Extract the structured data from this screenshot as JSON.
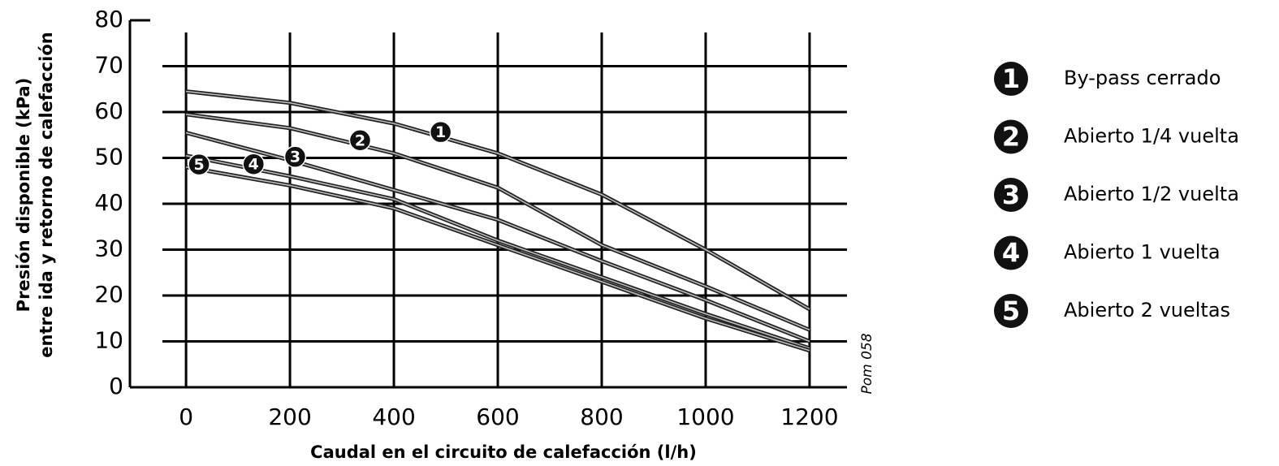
{
  "chart_data": {
    "type": "line",
    "x_label": "Caudal en el circuito de calefacción (l/h)",
    "y_label": [
      "Presión disponible (kPa)",
      "entre ida y retorno de calefacción"
    ],
    "annotation": "Pom 058",
    "x": [
      0,
      200,
      400,
      600,
      800,
      1000,
      1200
    ],
    "xlim": [
      -108,
      1272
    ],
    "xticks": [
      0,
      200,
      400,
      600,
      800,
      1000,
      1200
    ],
    "ylim": [
      0,
      80
    ],
    "yticks": [
      0,
      10,
      20,
      30,
      40,
      50,
      60,
      70,
      80
    ],
    "grid": true,
    "series": [
      {
        "name": "By-pass cerrado",
        "label": "1",
        "color": "#222222",
        "values": [
          64.5,
          62,
          57.5,
          51,
          42,
          30,
          17
        ]
      },
      {
        "name": "Abierto 1/4 vuelta",
        "label": "2",
        "color": "#222222",
        "values": [
          59.5,
          56.5,
          51,
          43.5,
          31,
          22,
          12.5
        ]
      },
      {
        "name": "Abierto 1/2 vuelta",
        "label": "3",
        "color": "#222222",
        "values": [
          55.5,
          49.5,
          43,
          36.5,
          27.5,
          19,
          10
        ]
      },
      {
        "name": "Abierto 1 vuelta",
        "label": "4",
        "color": "#222222",
        "values": [
          50.5,
          46,
          41,
          32,
          24,
          16,
          8.5
        ]
      },
      {
        "name": "Abierto 2 vueltas",
        "label": "5",
        "color": "#222222",
        "values": [
          48,
          44,
          39,
          31,
          23,
          15,
          8
        ]
      }
    ]
  }
}
